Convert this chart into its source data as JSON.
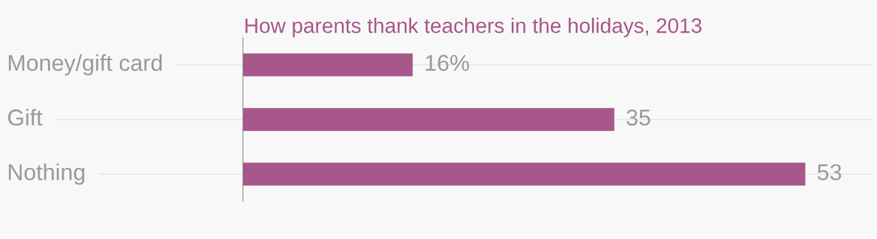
{
  "chart_data": {
    "type": "bar",
    "orientation": "horizontal",
    "title": "How parents thank teachers in the holidays, 2013",
    "categories": [
      "Money/gift card",
      "Gift",
      "Nothing"
    ],
    "values": [
      16,
      35,
      53
    ],
    "value_labels": [
      "16%",
      "35",
      "53"
    ],
    "color": "#a8578a",
    "grid": "y",
    "legend": false
  }
}
